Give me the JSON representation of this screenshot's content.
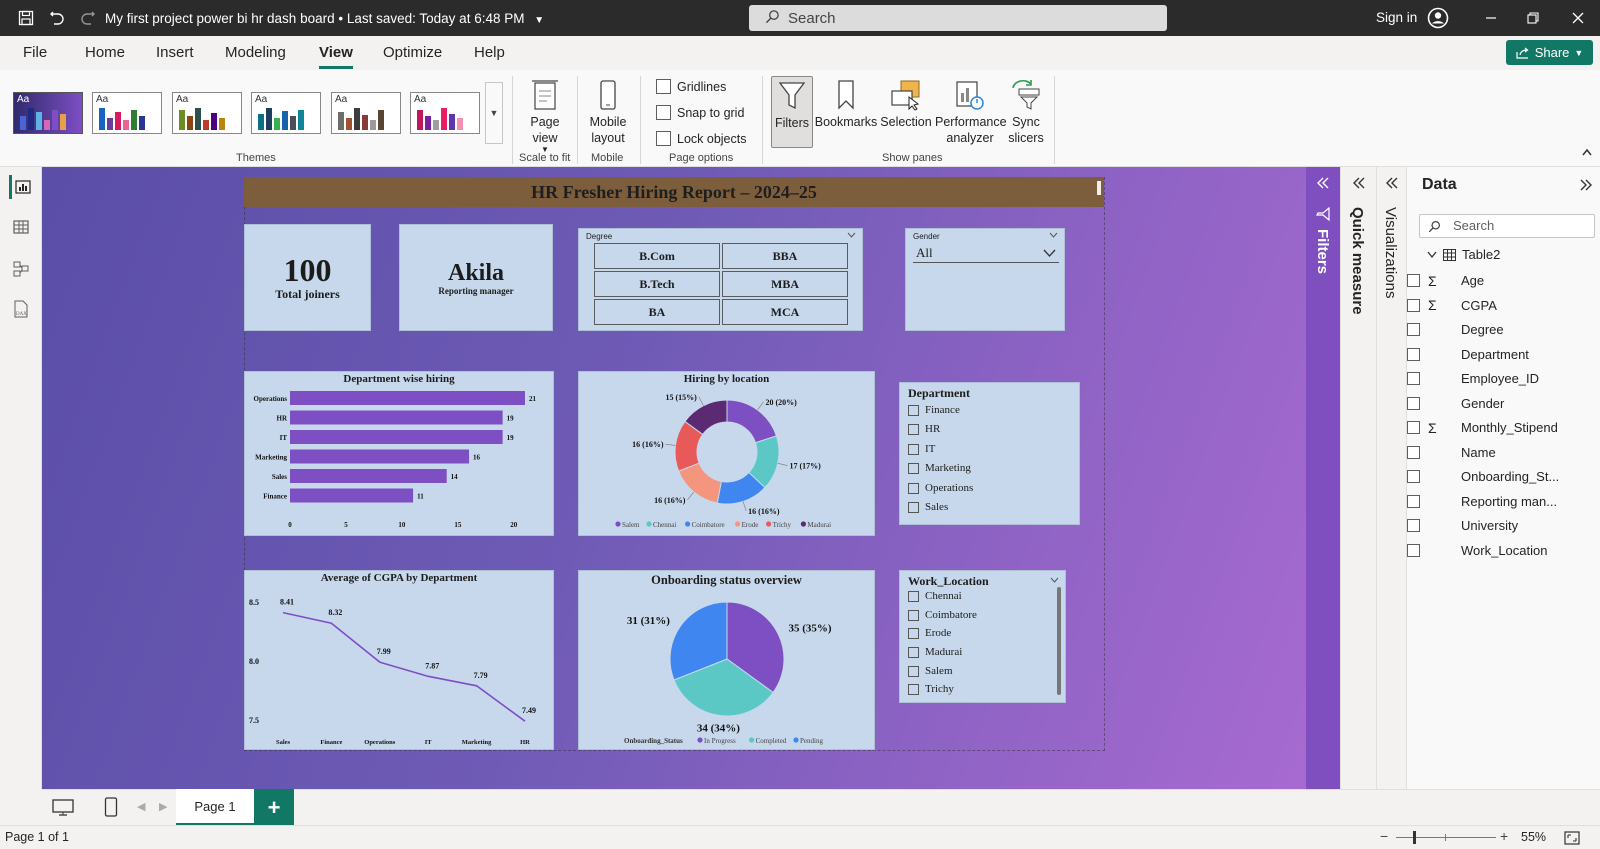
{
  "titlebar": {
    "doc_title": "My first project power bi hr dash board",
    "saved": "Last saved: Today at 6:48 PM",
    "search_placeholder": "Search",
    "sign_in": "Sign in"
  },
  "menu": {
    "items": [
      "File",
      "Home",
      "Insert",
      "Modeling",
      "View",
      "Optimize",
      "Help"
    ],
    "active": "View",
    "share": "Share"
  },
  "ribbon": {
    "themes_label": "Themes",
    "page_view": "Page view",
    "scale_to_fit": "Scale to fit",
    "mobile_layout": "Mobile layout",
    "mobile": "Mobile",
    "gridlines": "Gridlines",
    "snap_to_grid": "Snap to grid",
    "lock_objects": "Lock objects",
    "page_options": "Page options",
    "filters": "Filters",
    "bookmarks": "Bookmarks",
    "selection": "Selection",
    "performance_analyzer": "Performance analyzer",
    "sync_slicers": "Sync slicers",
    "show_panes": "Show panes"
  },
  "report": {
    "banner": "HR Fresher Hiring Report – 2024–25",
    "kpi_joiners_value": "100",
    "kpi_joiners_label": "Total joiners",
    "kpi_manager_value": "Akila",
    "kpi_manager_label": "Reporting manager",
    "degree_slicer_title": "Degree",
    "degree_options": [
      "B.Com",
      "BBA",
      "B.Tech",
      "MBA",
      "BA",
      "MCA"
    ],
    "gender_slicer_title": "Gender",
    "gender_value": "All",
    "department_slicer_title": "Department",
    "department_options": [
      "Finance",
      "HR",
      "IT",
      "Marketing",
      "Operations",
      "Sales"
    ],
    "work_location_title": "Work_Location",
    "work_location_options": [
      "Chennai",
      "Coimbatore",
      "Erode",
      "Madurai",
      "Salem",
      "Trichy"
    ]
  },
  "chart_data": [
    {
      "type": "bar",
      "orientation": "horizontal",
      "title": "Department wise hiring",
      "categories": [
        "Operations",
        "HR",
        "IT",
        "Marketing",
        "Sales",
        "Finance"
      ],
      "values": [
        21,
        19,
        19,
        16,
        14,
        11
      ],
      "xlim": [
        0,
        21
      ],
      "xticks": [
        0,
        5,
        10,
        15,
        20
      ],
      "color": "#7e4fc3"
    },
    {
      "type": "pie",
      "donut": true,
      "title": "Hiring by location",
      "categories": [
        "Salem",
        "Chennai",
        "Coimbatore",
        "Erode",
        "Trichy",
        "Madurai"
      ],
      "values": [
        20,
        17,
        16,
        16,
        16,
        15
      ],
      "labels": [
        "20 (20%)",
        "17 (17%)",
        "16 (16%)",
        "16 (16%)",
        "16 (16%)",
        "15 (15%)"
      ],
      "colors": [
        "#7e4fc3",
        "#5bc8c6",
        "#3f86f0",
        "#f4967d",
        "#e85a5a",
        "#5b2a72"
      ],
      "legend": "bottom"
    },
    {
      "type": "line",
      "title": "Average of CGPA by Department",
      "categories": [
        "Sales",
        "Finance",
        "Operations",
        "IT",
        "Marketing",
        "HR"
      ],
      "values": [
        8.41,
        8.32,
        7.99,
        7.87,
        7.79,
        7.49
      ],
      "labels": [
        "8.41",
        "8.32",
        "7.99",
        "7.87",
        "7.79",
        "7.49"
      ],
      "ylim": [
        7.5,
        8.5
      ],
      "yticks": [
        "8.5",
        "8.0",
        "7.5"
      ],
      "color": "#7e4fc3"
    },
    {
      "type": "pie",
      "title": "Onboarding status overview",
      "categories": [
        "In Progress",
        "Completed",
        "Pending"
      ],
      "values": [
        35,
        34,
        31
      ],
      "labels": [
        "35 (35%)",
        "34 (34%)",
        "31 (31%)"
      ],
      "legend_title": "Onboarding_Status",
      "colors": [
        "#7e4fc3",
        "#5bc8c6",
        "#3f86f0"
      ],
      "legend": "bottom"
    }
  ],
  "panes": {
    "filters": "Filters",
    "quick_measure": "Quick measure",
    "visualizations": "Visualizations",
    "data_title": "Data",
    "data_search": "Search",
    "table_name": "Table2",
    "fields": [
      {
        "name": "Age",
        "sigma": true
      },
      {
        "name": "CGPA",
        "sigma": true
      },
      {
        "name": "Degree",
        "sigma": false
      },
      {
        "name": "Department",
        "sigma": false
      },
      {
        "name": "Employee_ID",
        "sigma": false
      },
      {
        "name": "Gender",
        "sigma": false
      },
      {
        "name": "Monthly_Stipend",
        "sigma": true
      },
      {
        "name": "Name",
        "sigma": false
      },
      {
        "name": "Onboarding_St...",
        "sigma": false
      },
      {
        "name": "Reporting man...",
        "sigma": false
      },
      {
        "name": "University",
        "sigma": false
      },
      {
        "name": "Work_Location",
        "sigma": false
      }
    ]
  },
  "tabs": {
    "page1": "Page 1",
    "add": "+"
  },
  "status": {
    "page_info": "Page 1 of 1",
    "zoom": "55%"
  }
}
